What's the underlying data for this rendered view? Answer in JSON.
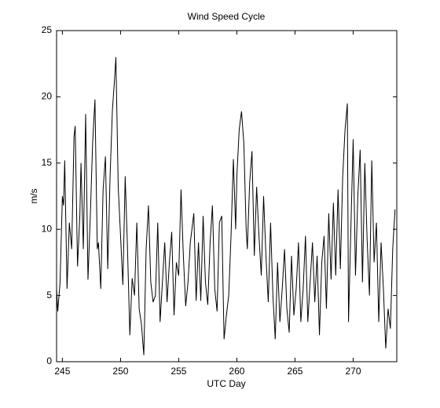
{
  "chart_data": {
    "type": "line",
    "title": "Wind Speed Cycle",
    "xlabel": "UTC Day",
    "ylabel": "m/s",
    "xlim": [
      244.5,
      273.75
    ],
    "ylim": [
      0,
      25
    ],
    "xticks": [
      245,
      250,
      255,
      260,
      265,
      270
    ],
    "yticks": [
      0,
      5,
      10,
      15,
      20,
      25
    ],
    "color": "#000000",
    "x": [
      244.5,
      244.6,
      244.8,
      245.0,
      245.1,
      245.2,
      245.4,
      245.6,
      245.8,
      246.0,
      246.1,
      246.3,
      246.5,
      246.6,
      246.8,
      247.0,
      247.2,
      247.4,
      247.6,
      247.8,
      248.0,
      248.1,
      248.3,
      248.5,
      248.7,
      248.9,
      249.1,
      249.3,
      249.5,
      249.6,
      249.8,
      250.0,
      250.2,
      250.4,
      250.6,
      250.8,
      251.0,
      251.2,
      251.4,
      251.6,
      251.8,
      252.0,
      252.2,
      252.4,
      252.6,
      252.8,
      253.0,
      253.2,
      253.4,
      253.6,
      253.8,
      254.0,
      254.2,
      254.4,
      254.6,
      254.8,
      255.0,
      255.2,
      255.4,
      255.6,
      255.8,
      256.0,
      256.3,
      256.5,
      256.7,
      256.9,
      257.1,
      257.3,
      257.5,
      257.7,
      257.9,
      258.1,
      258.3,
      258.5,
      258.7,
      258.9,
      259.1,
      259.3,
      259.5,
      259.7,
      259.9,
      260.0,
      260.2,
      260.4,
      260.6,
      260.8,
      260.9,
      261.1,
      261.3,
      261.5,
      261.7,
      261.9,
      262.1,
      262.3,
      262.5,
      262.7,
      262.9,
      263.1,
      263.3,
      263.5,
      263.7,
      263.9,
      264.1,
      264.3,
      264.5,
      264.7,
      264.9,
      265.1,
      265.3,
      265.5,
      265.7,
      265.9,
      266.1,
      266.3,
      266.5,
      266.7,
      266.9,
      267.1,
      267.3,
      267.5,
      267.7,
      267.9,
      268.1,
      268.3,
      268.5,
      268.7,
      268.9,
      269.1,
      269.3,
      269.5,
      269.6,
      269.8,
      270.0,
      270.2,
      270.4,
      270.6,
      270.8,
      271.0,
      271.2,
      271.4,
      271.6,
      271.8,
      272.0,
      272.2,
      272.4,
      272.6,
      272.8,
      273.0,
      273.2,
      273.4,
      273.6
    ],
    "values": [
      5.5,
      3.8,
      6,
      12.5,
      11.8,
      15.2,
      5.5,
      10.5,
      8.5,
      17,
      17.8,
      7.2,
      11,
      15,
      8.5,
      18.7,
      6.2,
      11,
      16.5,
      19.8,
      8.5,
      9,
      5.5,
      13,
      15.5,
      7,
      14,
      19,
      21.5,
      23,
      13.2,
      9.5,
      5.8,
      14,
      8.5,
      2,
      6.3,
      5,
      10.5,
      4,
      2.8,
      0.5,
      8.5,
      11.8,
      6,
      4.5,
      5,
      10.5,
      3,
      6,
      9,
      4.5,
      7.5,
      9.8,
      3.5,
      7.5,
      6.5,
      13,
      8,
      4.2,
      6,
      9,
      11.2,
      4.6,
      9,
      4.6,
      11,
      6,
      4.3,
      9,
      11.8,
      5.5,
      3.8,
      10.5,
      11,
      1.7,
      3.5,
      5,
      9.5,
      15.3,
      10,
      14,
      17.5,
      18.9,
      16.5,
      10,
      8.5,
      13.5,
      15.9,
      8,
      13.2,
      9.5,
      6.5,
      12.5,
      8,
      4.5,
      10.5,
      5,
      1.7,
      7.5,
      3,
      5.5,
      8.5,
      4,
      2.2,
      8,
      3.5,
      5.5,
      9,
      3,
      5.5,
      9.5,
      3,
      6,
      9,
      4.5,
      8,
      2,
      7.5,
      9.5,
      4,
      11.2,
      6.2,
      12,
      6.5,
      13,
      7,
      14,
      17.5,
      19.5,
      3,
      10,
      16.8,
      6.5,
      12.5,
      16,
      6,
      15,
      9.2,
      5,
      15.2,
      7.5,
      10.5,
      3,
      9,
      5.5,
      1,
      4,
      2.5,
      8.5,
      11.5
    ]
  }
}
